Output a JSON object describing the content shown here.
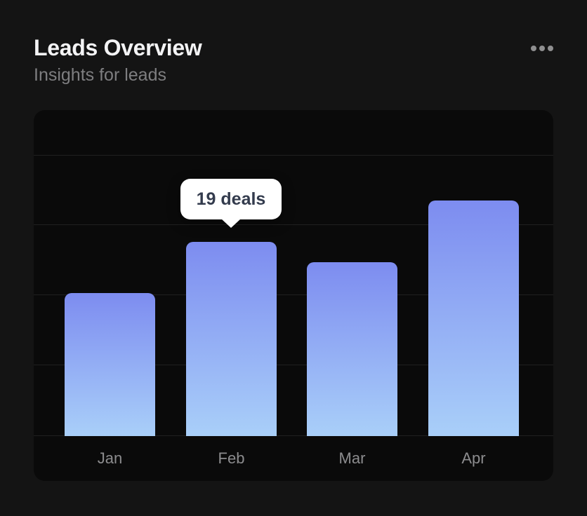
{
  "header": {
    "title": "Leads Overview",
    "subtitle": "Insights for leads",
    "menu_icon": "ellipsis-icon"
  },
  "chart_data": {
    "type": "bar",
    "title": "Leads Overview",
    "subtitle": "Insights for leads",
    "categories": [
      "Jan",
      "Feb",
      "Mar",
      "Apr"
    ],
    "values": [
      14,
      19,
      17,
      23
    ],
    "unit": "deals",
    "ylim": [
      0,
      32
    ],
    "grid": true,
    "gridlines": "horizontal",
    "legend": "none",
    "tooltip": {
      "index": 1,
      "category": "Feb",
      "text": "19 deals"
    },
    "bar_gradient_top": "#7d8cf0",
    "bar_gradient_bottom": "#a9cff9"
  },
  "colors": {
    "page_background": "#141414",
    "card_background": "#0a0a0a",
    "title_text": "#f4f4f5",
    "subtitle_text": "#7e7e80",
    "axis_label_text": "#8c8c8e",
    "gridline": "rgba(255,255,255,0.09)",
    "tooltip_background": "#ffffff",
    "tooltip_text": "#333b4d"
  }
}
